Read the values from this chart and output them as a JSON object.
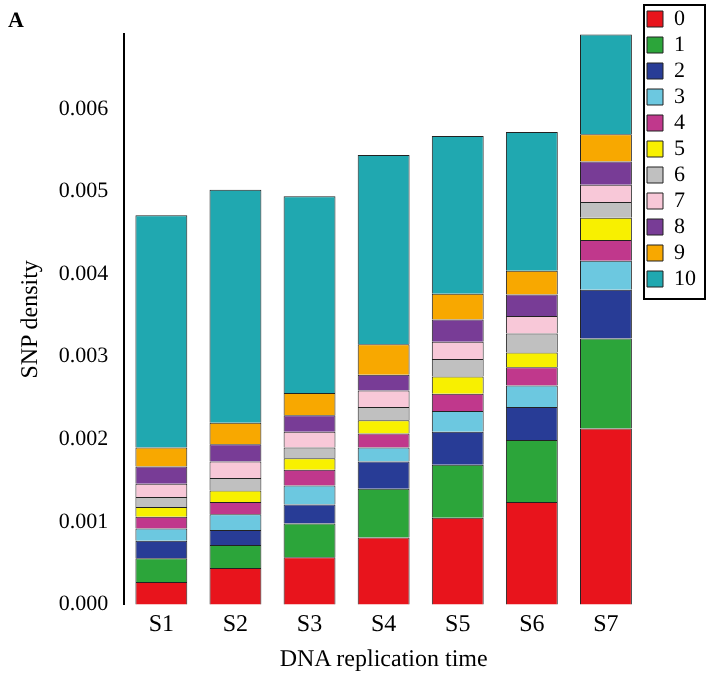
{
  "chart_data": {
    "type": "bar",
    "title": "A",
    "xlabel": "DNA replication time",
    "ylabel": "SNP density",
    "stacked": true,
    "legend": "right",
    "grid": false,
    "categories": [
      "S1",
      "S2",
      "S3",
      "S4",
      "S5",
      "S6",
      "S7"
    ],
    "ylim": [
      0,
      0.0069
    ],
    "yticks": [
      {
        "value": 0,
        "label": "0.000"
      },
      {
        "value": 0.001,
        "label": "0.001"
      },
      {
        "value": 0.002,
        "label": "0.002"
      },
      {
        "value": 0.003,
        "label": "0.003"
      },
      {
        "value": 0.004,
        "label": "0.004"
      },
      {
        "value": 0.005,
        "label": "0.005"
      },
      {
        "value": 0.006,
        "label": "0.006"
      }
    ],
    "series": [
      {
        "name": "0",
        "color": "#e8141c",
        "values": [
          0.00027,
          0.00044,
          0.00057,
          0.00081,
          0.00105,
          0.00124,
          0.00213
        ]
      },
      {
        "name": "1",
        "color": "#2ca53a",
        "values": [
          0.00029,
          0.00028,
          0.00041,
          0.00059,
          0.00064,
          0.00075,
          0.00109
        ]
      },
      {
        "name": "2",
        "color": "#283c96",
        "values": [
          0.00021,
          0.00018,
          0.00023,
          0.00033,
          0.0004,
          0.0004,
          0.00059
        ]
      },
      {
        "name": "3",
        "color": "#6cc8e0",
        "values": [
          0.00015,
          0.00019,
          0.00023,
          0.00017,
          0.00025,
          0.00026,
          0.00035
        ]
      },
      {
        "name": "4",
        "color": "#c0388c",
        "values": [
          0.00014,
          0.00015,
          0.00019,
          0.00017,
          0.00021,
          0.00022,
          0.00025
        ]
      },
      {
        "name": "5",
        "color": "#f8f000",
        "values": [
          0.00012,
          0.00014,
          0.00014,
          0.00016,
          0.00021,
          0.00018,
          0.00027
        ]
      },
      {
        "name": "6",
        "color": "#c0c0c0",
        "values": [
          0.00012,
          0.00015,
          0.00013,
          0.00016,
          0.00021,
          0.00023,
          0.00019
        ]
      },
      {
        "name": "7",
        "color": "#f8c8d8",
        "values": [
          0.00016,
          0.0002,
          0.00019,
          0.0002,
          0.00021,
          0.00021,
          0.00021
        ]
      },
      {
        "name": "8",
        "color": "#783c96",
        "values": [
          0.00021,
          0.00021,
          0.0002,
          0.00019,
          0.00027,
          0.00026,
          0.00028
        ]
      },
      {
        "name": "9",
        "color": "#f8a800",
        "values": [
          0.00023,
          0.00026,
          0.00027,
          0.00037,
          0.00031,
          0.00029,
          0.00033
        ]
      },
      {
        "name": "10",
        "color": "#20a8b0",
        "values": [
          0.00281,
          0.00282,
          0.00238,
          0.00229,
          0.00191,
          0.00168,
          0.00121
        ]
      }
    ]
  }
}
